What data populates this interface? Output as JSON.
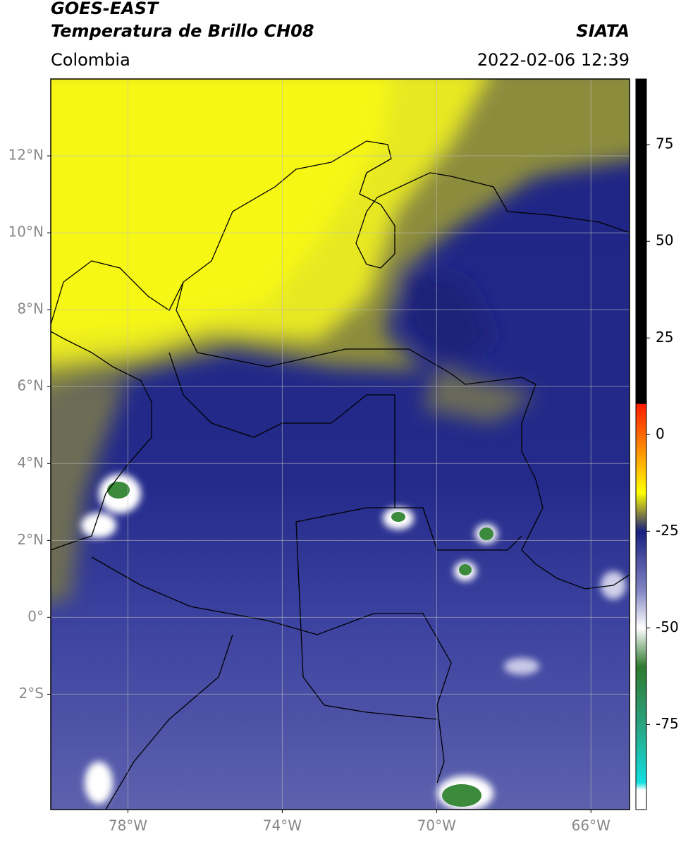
{
  "chart_data": {
    "type": "map",
    "title": "GOES-EAST",
    "subtitle": "Temperatura de Brillo CH08",
    "source": "SIATA",
    "region": "Colombia",
    "datetime": "2022-02-06 12:39",
    "xlim": [
      -80,
      -65
    ],
    "ylim": [
      -5,
      14
    ],
    "xticks": [
      {
        "value": -78,
        "label": "78°W"
      },
      {
        "value": -74,
        "label": "74°W"
      },
      {
        "value": -70,
        "label": "70°W"
      },
      {
        "value": -66,
        "label": "66°W"
      }
    ],
    "yticks": [
      {
        "value": -2,
        "label": "2°S"
      },
      {
        "value": 0,
        "label": "0°"
      },
      {
        "value": 2,
        "label": "2°N"
      },
      {
        "value": 4,
        "label": "4°N"
      },
      {
        "value": 6,
        "label": "6°N"
      },
      {
        "value": 8,
        "label": "8°N"
      },
      {
        "value": 10,
        "label": "10°N"
      },
      {
        "value": 12,
        "label": "12°N"
      }
    ],
    "grid": true,
    "colorbar": {
      "lim": [
        -97,
        92
      ],
      "ticks": [
        75,
        50,
        25,
        0,
        -25,
        -50,
        -75
      ],
      "stops": [
        {
          "value": 92,
          "color": "#000000"
        },
        {
          "value": 8,
          "color": "#000000"
        },
        {
          "value": 7.9,
          "color": "#ff1a00"
        },
        {
          "value": -5,
          "color": "#ff9900"
        },
        {
          "value": -15,
          "color": "#ffff00"
        },
        {
          "value": -20,
          "color": "#8f8f3a"
        },
        {
          "value": -25,
          "color": "#1a1f80"
        },
        {
          "value": -40,
          "color": "#7f83c2"
        },
        {
          "value": -50,
          "color": "#ffffff"
        },
        {
          "value": -60,
          "color": "#2f7a2f"
        },
        {
          "value": -75,
          "color": "#2aa37f"
        },
        {
          "value": -90,
          "color": "#10e0e0"
        },
        {
          "value": -92,
          "color": "#ffffff"
        },
        {
          "value": -97,
          "color": "#ffffff"
        }
      ]
    }
  }
}
